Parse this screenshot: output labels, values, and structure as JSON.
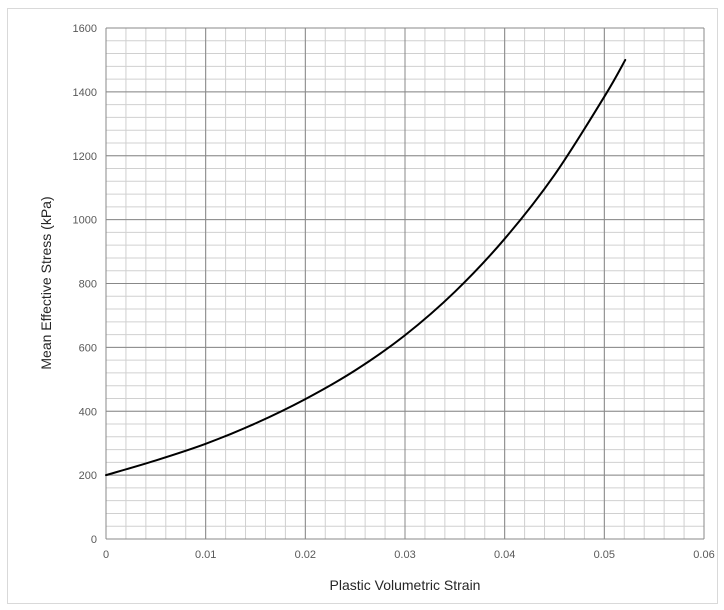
{
  "chart_data": {
    "type": "line",
    "title": "",
    "xlabel": "Plastic Volumetric Strain",
    "ylabel": "Mean Effective Stress (kPa)",
    "xlim": [
      0,
      0.06
    ],
    "ylim": [
      0,
      1600
    ],
    "x_major_step": 0.01,
    "x_minor_step": 0.002,
    "y_major_step": 200,
    "y_minor_step": 40,
    "grid": true,
    "legend": "none",
    "x_tick_labels": [
      "0",
      "0.01",
      "0.02",
      "0.03",
      "0.04",
      "0.05",
      "0.06"
    ],
    "y_tick_labels": [
      "0",
      "200",
      "400",
      "600",
      "800",
      "1000",
      "1200",
      "1400",
      "1600"
    ],
    "colors": {
      "line": "#000000",
      "major_grid": "#888888",
      "minor_grid": "#d0d0d0",
      "frame": "#d9d9d9"
    },
    "series": [
      {
        "x": [
          0,
          0.005,
          0.01,
          0.015,
          0.02,
          0.025,
          0.03,
          0.035,
          0.04,
          0.045,
          0.05,
          0.0521
        ],
        "y": [
          200,
          246,
          298,
          362,
          438,
          528,
          638,
          774,
          940,
          1140,
          1385,
          1500
        ]
      }
    ]
  }
}
